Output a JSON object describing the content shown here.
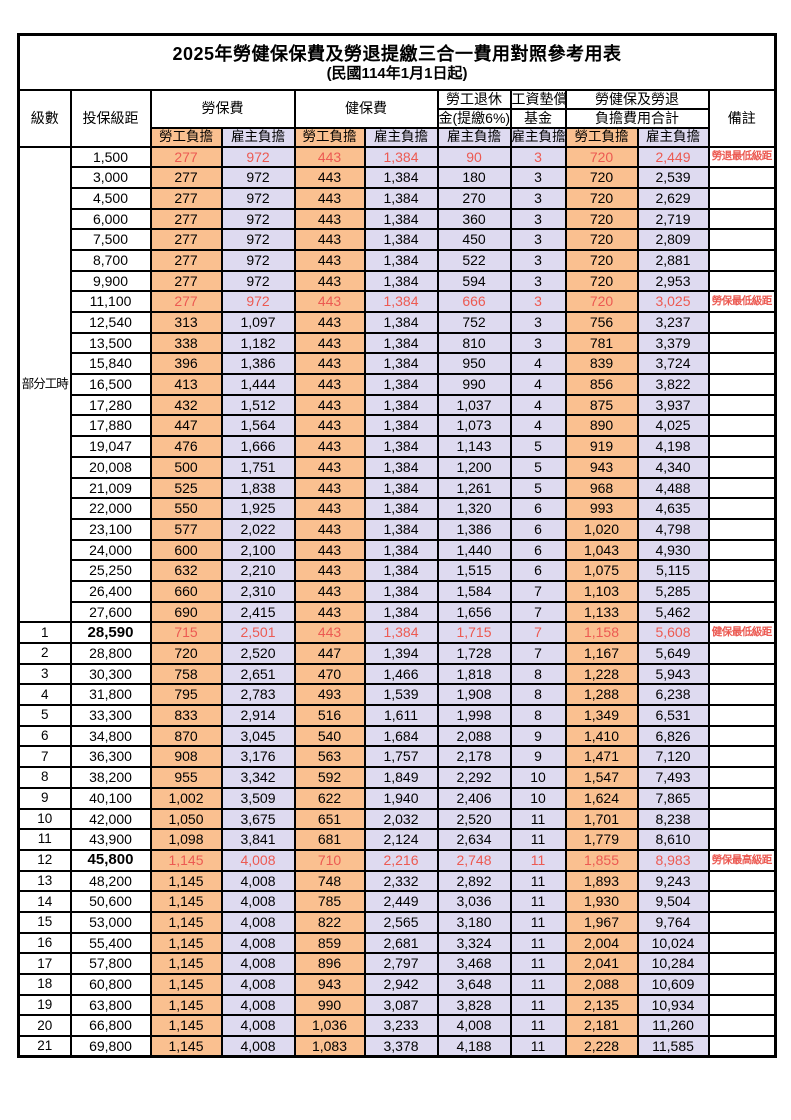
{
  "title": "2025年勞健保保費及勞退提繳三合一費用對照參考用表",
  "subtitle": "(民國114年1月1日起)",
  "colors": {
    "employee_bg": "#FAC090",
    "employer_bg": "#DEDAF0",
    "highlight_text": "#EC5A52",
    "border": "#000000"
  },
  "header": {
    "level": "級數",
    "bracket": "投保級距",
    "labor_insurance": "勞保費",
    "health_insurance": "健保費",
    "pension_line1": "勞工退休",
    "pension_line2": "金(提繳6%)",
    "wage_fund_line1": "工資墊償",
    "wage_fund_line2": "基金",
    "total_line1": "勞健保及勞退",
    "total_line2": "負擔費用合計",
    "remark": "備註",
    "employee_label": "勞工負擔",
    "employer_label": "雇主負擔"
  },
  "part_time_label": "部分工時",
  "part_time_rowspan": 23,
  "rows": [
    {
      "level": "",
      "bracket": "1,500",
      "values": [
        "277",
        "972",
        "443",
        "1,384",
        "90",
        "3",
        "720",
        "2,449"
      ],
      "remark": "勞退最低級距",
      "red": true,
      "bold": false
    },
    {
      "level": "",
      "bracket": "3,000",
      "values": [
        "277",
        "972",
        "443",
        "1,384",
        "180",
        "3",
        "720",
        "2,539"
      ],
      "remark": "",
      "red": false,
      "bold": false
    },
    {
      "level": "",
      "bracket": "4,500",
      "values": [
        "277",
        "972",
        "443",
        "1,384",
        "270",
        "3",
        "720",
        "2,629"
      ],
      "remark": "",
      "red": false,
      "bold": false
    },
    {
      "level": "",
      "bracket": "6,000",
      "values": [
        "277",
        "972",
        "443",
        "1,384",
        "360",
        "3",
        "720",
        "2,719"
      ],
      "remark": "",
      "red": false,
      "bold": false
    },
    {
      "level": "",
      "bracket": "7,500",
      "values": [
        "277",
        "972",
        "443",
        "1,384",
        "450",
        "3",
        "720",
        "2,809"
      ],
      "remark": "",
      "red": false,
      "bold": false
    },
    {
      "level": "",
      "bracket": "8,700",
      "values": [
        "277",
        "972",
        "443",
        "1,384",
        "522",
        "3",
        "720",
        "2,881"
      ],
      "remark": "",
      "red": false,
      "bold": false
    },
    {
      "level": "",
      "bracket": "9,900",
      "values": [
        "277",
        "972",
        "443",
        "1,384",
        "594",
        "3",
        "720",
        "2,953"
      ],
      "remark": "",
      "red": false,
      "bold": false
    },
    {
      "level": "",
      "bracket": "11,100",
      "values": [
        "277",
        "972",
        "443",
        "1,384",
        "666",
        "3",
        "720",
        "3,025"
      ],
      "remark": "勞保最低級距",
      "red": true,
      "bold": false
    },
    {
      "level": "",
      "bracket": "12,540",
      "values": [
        "313",
        "1,097",
        "443",
        "1,384",
        "752",
        "3",
        "756",
        "3,237"
      ],
      "remark": "",
      "red": false,
      "bold": false
    },
    {
      "level": "",
      "bracket": "13,500",
      "values": [
        "338",
        "1,182",
        "443",
        "1,384",
        "810",
        "3",
        "781",
        "3,379"
      ],
      "remark": "",
      "red": false,
      "bold": false
    },
    {
      "level": "",
      "bracket": "15,840",
      "values": [
        "396",
        "1,386",
        "443",
        "1,384",
        "950",
        "4",
        "839",
        "3,724"
      ],
      "remark": "",
      "red": false,
      "bold": false
    },
    {
      "level": "",
      "bracket": "16,500",
      "values": [
        "413",
        "1,444",
        "443",
        "1,384",
        "990",
        "4",
        "856",
        "3,822"
      ],
      "remark": "",
      "red": false,
      "bold": false
    },
    {
      "level": "",
      "bracket": "17,280",
      "values": [
        "432",
        "1,512",
        "443",
        "1,384",
        "1,037",
        "4",
        "875",
        "3,937"
      ],
      "remark": "",
      "red": false,
      "bold": false
    },
    {
      "level": "",
      "bracket": "17,880",
      "values": [
        "447",
        "1,564",
        "443",
        "1,384",
        "1,073",
        "4",
        "890",
        "4,025"
      ],
      "remark": "",
      "red": false,
      "bold": false
    },
    {
      "level": "",
      "bracket": "19,047",
      "values": [
        "476",
        "1,666",
        "443",
        "1,384",
        "1,143",
        "5",
        "919",
        "4,198"
      ],
      "remark": "",
      "red": false,
      "bold": false
    },
    {
      "level": "",
      "bracket": "20,008",
      "values": [
        "500",
        "1,751",
        "443",
        "1,384",
        "1,200",
        "5",
        "943",
        "4,340"
      ],
      "remark": "",
      "red": false,
      "bold": false
    },
    {
      "level": "",
      "bracket": "21,009",
      "values": [
        "525",
        "1,838",
        "443",
        "1,384",
        "1,261",
        "5",
        "968",
        "4,488"
      ],
      "remark": "",
      "red": false,
      "bold": false
    },
    {
      "level": "",
      "bracket": "22,000",
      "values": [
        "550",
        "1,925",
        "443",
        "1,384",
        "1,320",
        "6",
        "993",
        "4,635"
      ],
      "remark": "",
      "red": false,
      "bold": false
    },
    {
      "level": "",
      "bracket": "23,100",
      "values": [
        "577",
        "2,022",
        "443",
        "1,384",
        "1,386",
        "6",
        "1,020",
        "4,798"
      ],
      "remark": "",
      "red": false,
      "bold": false
    },
    {
      "level": "",
      "bracket": "24,000",
      "values": [
        "600",
        "2,100",
        "443",
        "1,384",
        "1,440",
        "6",
        "1,043",
        "4,930"
      ],
      "remark": "",
      "red": false,
      "bold": false
    },
    {
      "level": "",
      "bracket": "25,250",
      "values": [
        "632",
        "2,210",
        "443",
        "1,384",
        "1,515",
        "6",
        "1,075",
        "5,115"
      ],
      "remark": "",
      "red": false,
      "bold": false
    },
    {
      "level": "",
      "bracket": "26,400",
      "values": [
        "660",
        "2,310",
        "443",
        "1,384",
        "1,584",
        "7",
        "1,103",
        "5,285"
      ],
      "remark": "",
      "red": false,
      "bold": false
    },
    {
      "level": "",
      "bracket": "27,600",
      "values": [
        "690",
        "2,415",
        "443",
        "1,384",
        "1,656",
        "7",
        "1,133",
        "5,462"
      ],
      "remark": "",
      "red": false,
      "bold": false
    },
    {
      "level": "1",
      "bracket": "28,590",
      "values": [
        "715",
        "2,501",
        "443",
        "1,384",
        "1,715",
        "7",
        "1,158",
        "5,608"
      ],
      "remark": "健保最低級距",
      "red": true,
      "bold": true
    },
    {
      "level": "2",
      "bracket": "28,800",
      "values": [
        "720",
        "2,520",
        "447",
        "1,394",
        "1,728",
        "7",
        "1,167",
        "5,649"
      ],
      "remark": "",
      "red": false,
      "bold": false
    },
    {
      "level": "3",
      "bracket": "30,300",
      "values": [
        "758",
        "2,651",
        "470",
        "1,466",
        "1,818",
        "8",
        "1,228",
        "5,943"
      ],
      "remark": "",
      "red": false,
      "bold": false
    },
    {
      "level": "4",
      "bracket": "31,800",
      "values": [
        "795",
        "2,783",
        "493",
        "1,539",
        "1,908",
        "8",
        "1,288",
        "6,238"
      ],
      "remark": "",
      "red": false,
      "bold": false
    },
    {
      "level": "5",
      "bracket": "33,300",
      "values": [
        "833",
        "2,914",
        "516",
        "1,611",
        "1,998",
        "8",
        "1,349",
        "6,531"
      ],
      "remark": "",
      "red": false,
      "bold": false
    },
    {
      "level": "6",
      "bracket": "34,800",
      "values": [
        "870",
        "3,045",
        "540",
        "1,684",
        "2,088",
        "9",
        "1,410",
        "6,826"
      ],
      "remark": "",
      "red": false,
      "bold": false
    },
    {
      "level": "7",
      "bracket": "36,300",
      "values": [
        "908",
        "3,176",
        "563",
        "1,757",
        "2,178",
        "9",
        "1,471",
        "7,120"
      ],
      "remark": "",
      "red": false,
      "bold": false
    },
    {
      "level": "8",
      "bracket": "38,200",
      "values": [
        "955",
        "3,342",
        "592",
        "1,849",
        "2,292",
        "10",
        "1,547",
        "7,493"
      ],
      "remark": "",
      "red": false,
      "bold": false
    },
    {
      "level": "9",
      "bracket": "40,100",
      "values": [
        "1,002",
        "3,509",
        "622",
        "1,940",
        "2,406",
        "10",
        "1,624",
        "7,865"
      ],
      "remark": "",
      "red": false,
      "bold": false
    },
    {
      "level": "10",
      "bracket": "42,000",
      "values": [
        "1,050",
        "3,675",
        "651",
        "2,032",
        "2,520",
        "11",
        "1,701",
        "8,238"
      ],
      "remark": "",
      "red": false,
      "bold": false
    },
    {
      "level": "11",
      "bracket": "43,900",
      "values": [
        "1,098",
        "3,841",
        "681",
        "2,124",
        "2,634",
        "11",
        "1,779",
        "8,610"
      ],
      "remark": "",
      "red": false,
      "bold": false
    },
    {
      "level": "12",
      "bracket": "45,800",
      "values": [
        "1,145",
        "4,008",
        "710",
        "2,216",
        "2,748",
        "11",
        "1,855",
        "8,983"
      ],
      "remark": "勞保最高級距",
      "red": true,
      "bold": true
    },
    {
      "level": "13",
      "bracket": "48,200",
      "values": [
        "1,145",
        "4,008",
        "748",
        "2,332",
        "2,892",
        "11",
        "1,893",
        "9,243"
      ],
      "remark": "",
      "red": false,
      "bold": false
    },
    {
      "level": "14",
      "bracket": "50,600",
      "values": [
        "1,145",
        "4,008",
        "785",
        "2,449",
        "3,036",
        "11",
        "1,930",
        "9,504"
      ],
      "remark": "",
      "red": false,
      "bold": false
    },
    {
      "level": "15",
      "bracket": "53,000",
      "values": [
        "1,145",
        "4,008",
        "822",
        "2,565",
        "3,180",
        "11",
        "1,967",
        "9,764"
      ],
      "remark": "",
      "red": false,
      "bold": false
    },
    {
      "level": "16",
      "bracket": "55,400",
      "values": [
        "1,145",
        "4,008",
        "859",
        "2,681",
        "3,324",
        "11",
        "2,004",
        "10,024"
      ],
      "remark": "",
      "red": false,
      "bold": false
    },
    {
      "level": "17",
      "bracket": "57,800",
      "values": [
        "1,145",
        "4,008",
        "896",
        "2,797",
        "3,468",
        "11",
        "2,041",
        "10,284"
      ],
      "remark": "",
      "red": false,
      "bold": false
    },
    {
      "level": "18",
      "bracket": "60,800",
      "values": [
        "1,145",
        "4,008",
        "943",
        "2,942",
        "3,648",
        "11",
        "2,088",
        "10,609"
      ],
      "remark": "",
      "red": false,
      "bold": false
    },
    {
      "level": "19",
      "bracket": "63,800",
      "values": [
        "1,145",
        "4,008",
        "990",
        "3,087",
        "3,828",
        "11",
        "2,135",
        "10,934"
      ],
      "remark": "",
      "red": false,
      "bold": false
    },
    {
      "level": "20",
      "bracket": "66,800",
      "values": [
        "1,145",
        "4,008",
        "1,036",
        "3,233",
        "4,008",
        "11",
        "2,181",
        "11,260"
      ],
      "remark": "",
      "red": false,
      "bold": false
    },
    {
      "level": "21",
      "bracket": "69,800",
      "values": [
        "1,145",
        "4,008",
        "1,083",
        "3,378",
        "4,188",
        "11",
        "2,228",
        "11,585"
      ],
      "remark": "",
      "red": false,
      "bold": false
    }
  ]
}
